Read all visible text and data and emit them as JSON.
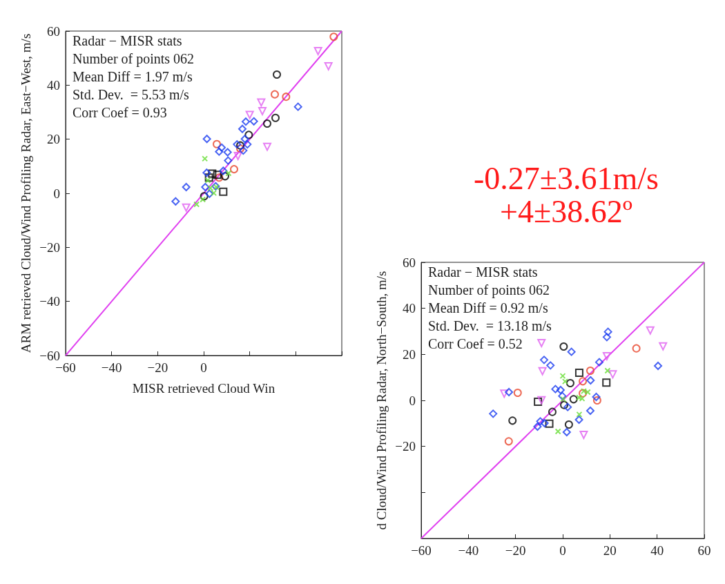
{
  "chart_data": [
    {
      "type": "scatter",
      "xlabel": "MISR retrieved Cloud Win",
      "ylabel": "ARM retrieved Cloud/Wind Profiling Radar, East−West, m/s",
      "annotations": [
        "Radar − MISR stats",
        "Number of points 062",
        "Mean Diff = 1.97 m/s",
        "Std. Dev.  = 5.53 m/s",
        "Corr Coef = 0.93"
      ],
      "xlim": [
        -60,
        60
      ],
      "ylim": [
        -60,
        60
      ],
      "xticks": [
        {
          "value": -60,
          "label": "−60"
        },
        {
          "value": -40,
          "label": "−40"
        },
        {
          "value": -20,
          "label": "−20"
        },
        0,
        {
          "value": 20,
          "label": null
        },
        {
          "value": 40,
          "label": null
        },
        {
          "value": 60,
          "label": null
        }
      ],
      "yticks": [
        {
          "value": -60,
          "label": "−60"
        },
        {
          "value": -40,
          "label": "−40"
        },
        {
          "value": -20,
          "label": "−20"
        },
        0,
        20,
        40,
        60
      ],
      "grid": false,
      "series": [
        {
          "type": "line",
          "color": "#e040f0",
          "marker": "none",
          "line_style": "solid",
          "x": [
            -60,
            60
          ],
          "values": [
            -60,
            60
          ]
        },
        {
          "color": "#e8452c",
          "marker": "circle",
          "x": [
            56.5,
            30.9,
            35.8,
            5.7,
            13.2,
            15.9,
            6.7
          ],
          "values": [
            57.9,
            36.6,
            35.7,
            18.2,
            8.9,
            16.5,
            5.8
          ]
        },
        {
          "color": "#000000",
          "marker": "circle",
          "x": [
            31.8,
            31.2,
            27.6,
            19.6,
            15.9,
            9.3,
            0.2
          ],
          "values": [
            43.9,
            27.9,
            25.8,
            21.6,
            17.7,
            6.3,
            -1.1
          ]
        },
        {
          "color": "#000000",
          "marker": "square",
          "x": [
            3.7,
            5.9,
            8.5,
            2.3
          ],
          "values": [
            7.3,
            6.8,
            0.6,
            5.8
          ]
        },
        {
          "color": "#e060f0",
          "marker": "triangle",
          "x": [
            49.7,
            54.2,
            25.0,
            25.5,
            20.0,
            27.6,
            14.9,
            -7.6
          ],
          "values": [
            52.6,
            47.0,
            33.6,
            30.4,
            29.0,
            17.2,
            13.8,
            -5.3
          ]
        },
        {
          "color": "#1a3cf0",
          "marker": "diamond",
          "x": [
            41.0,
            21.8,
            18.3,
            16.8,
            17.9,
            19.0,
            14.5,
            17.2,
            1.4,
            7.8,
            6.7,
            10.4,
            10.6,
            1.3,
            8.5,
            -7.6,
            0.7,
            5.2,
            2.5,
            -12.2
          ],
          "values": [
            32.0,
            26.6,
            26.5,
            23.8,
            20.1,
            18.1,
            18.1,
            15.8,
            20.1,
            16.9,
            15.4,
            15.2,
            12.1,
            7.6,
            8.3,
            2.3,
            2.3,
            2.6,
            -0.2,
            -3.0
          ]
        },
        {
          "color": "#66dd33",
          "marker": "cross",
          "x": [
            0.5,
            10.8,
            1.8,
            2.9,
            4.4,
            5.5,
            -0.4,
            -3.1
          ],
          "values": [
            12.8,
            7.4,
            4.8,
            1.9,
            0.1,
            2.3,
            -2.3,
            -4.1
          ]
        }
      ]
    },
    {
      "type": "scatter",
      "title": "-0.27±3.61m/s",
      "subtitle": "+4±38.62º",
      "ylabel": "d Cloud/Wind Profiling Radar, North−South, m/s",
      "annotations": [
        "Radar − MISR stats",
        "Number of points 062",
        "Mean Diff = 0.92 m/s",
        "Std. Dev.  = 13.18 m/s",
        "Corr Coef = 0.52"
      ],
      "xlim": [
        -60,
        60
      ],
      "ylim": [
        -60,
        60
      ],
      "xticks": [
        {
          "value": -60,
          "label": "−60"
        },
        {
          "value": -40,
          "label": "−40"
        },
        {
          "value": -20,
          "label": "−20"
        },
        0,
        20,
        40,
        60
      ],
      "yticks": [
        {
          "value": -60,
          "label": null
        },
        {
          "value": -40,
          "label": null
        },
        {
          "value": -20,
          "label": "−20"
        },
        0,
        20,
        40,
        60
      ],
      "grid": false,
      "series": [
        {
          "type": "line",
          "color": "#e040f0",
          "marker": "none",
          "line_style": "solid",
          "x": [
            -60,
            60
          ],
          "values": [
            -60,
            60
          ]
        },
        {
          "color": "#e8452c",
          "marker": "circle",
          "x": [
            31.2,
            11.7,
            8.5,
            8.5,
            14.6,
            -19.1,
            -22.9
          ],
          "values": [
            22.6,
            12.9,
            8.3,
            3.1,
            0.0,
            3.3,
            -17.8
          ]
        },
        {
          "color": "#000000",
          "marker": "circle",
          "x": [
            0.4,
            3.2,
            4.6,
            0.6,
            -4.4,
            -21.3,
            2.6
          ],
          "values": [
            23.4,
            7.5,
            0.5,
            -2.0,
            -5.0,
            -8.8,
            -10.5
          ]
        },
        {
          "color": "#000000",
          "marker": "square",
          "x": [
            7.0,
            18.5,
            -10.5,
            -5.7
          ],
          "values": [
            12.0,
            7.7,
            -0.6,
            -10.1
          ]
        },
        {
          "color": "#e060f0",
          "marker": "triangle",
          "x": [
            37.1,
            42.5,
            -9.0,
            -8.6,
            18.7,
            21.2,
            -24.8,
            -9.0,
            8.9
          ],
          "values": [
            30.4,
            23.5,
            24.9,
            12.7,
            19.2,
            11.3,
            2.9,
            0.1,
            -15.0
          ]
        },
        {
          "color": "#1a3cf0",
          "marker": "diamond",
          "x": [
            19.2,
            18.7,
            3.7,
            -7.9,
            -5.2,
            15.5,
            40.4,
            11.8,
            -3.1,
            -0.9,
            -0.2,
            14.2,
            2.1,
            11.7,
            6.9,
            -29.5,
            -9.5,
            -7.7,
            -10.7,
            1.7,
            -22.8
          ],
          "values": [
            29.8,
            27.5,
            21.1,
            17.6,
            15.2,
            16.6,
            15.0,
            8.7,
            4.9,
            4.5,
            1.9,
            1.5,
            -2.9,
            -4.5,
            -8.4,
            -5.8,
            -9.1,
            -9.9,
            -11.4,
            -13.8,
            3.6
          ]
        },
        {
          "color": "#66dd33",
          "marker": "cross",
          "x": [
            0.0,
            1.0,
            19.0,
            8.9,
            10.6,
            6.9,
            8.2,
            0.2,
            7.0,
            -2.0
          ],
          "values": [
            10.6,
            8.2,
            12.9,
            4.0,
            3.6,
            1.2,
            0.8,
            0.5,
            -6.1,
            -13.5
          ]
        }
      ]
    }
  ]
}
